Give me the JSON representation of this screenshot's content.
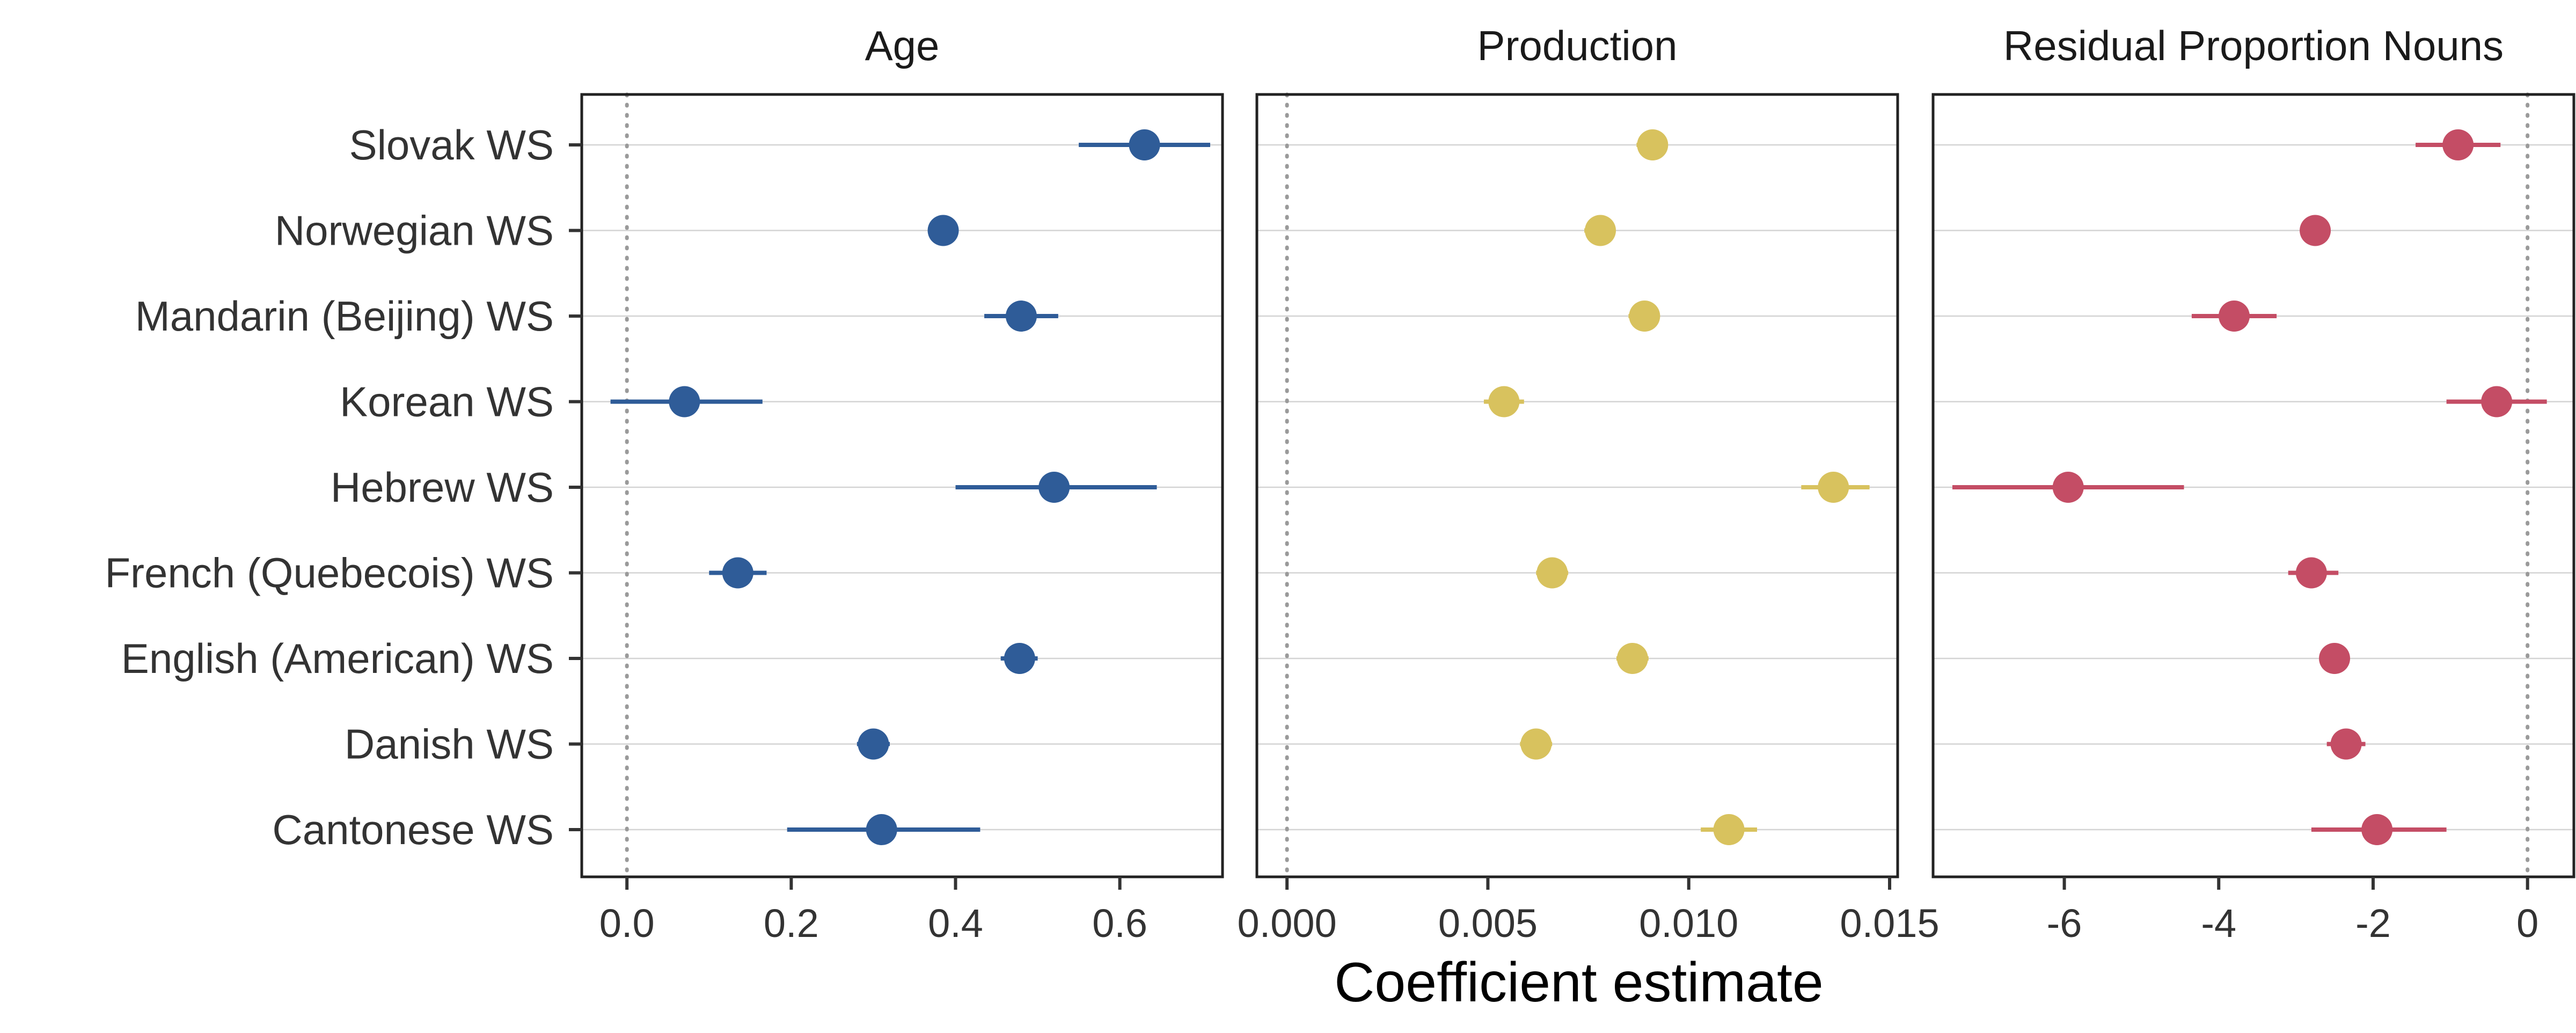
{
  "chart_data": {
    "type": "scatter",
    "subtype": "dot-and-whisker (faceted)",
    "xlabel": "Coefficient estimate",
    "ylabel": "",
    "categories": [
      "Slovak WS",
      "Norwegian WS",
      "Mandarin (Beijing) WS",
      "Korean WS",
      "Hebrew WS",
      "French (Quebecois) WS",
      "English (American) WS",
      "Danish WS",
      "Cantonese WS"
    ],
    "reference_line": 0,
    "grid": "horizontal only",
    "legend": "none",
    "panels": [
      {
        "title": "Age",
        "color": "#2F5C98",
        "xlim": [
          -0.055,
          0.725
        ],
        "ticks": [
          0.0,
          0.2,
          0.4,
          0.6
        ],
        "tick_labels": [
          "0.0",
          "0.2",
          "0.4",
          "0.6"
        ],
        "estimates": [
          0.63,
          0.385,
          0.48,
          0.07,
          0.52,
          0.135,
          0.478,
          0.3,
          0.31
        ],
        "lower": [
          0.55,
          0.375,
          0.435,
          -0.02,
          0.4,
          0.1,
          0.455,
          0.28,
          0.195
        ],
        "upper": [
          0.71,
          0.395,
          0.525,
          0.165,
          0.645,
          0.17,
          0.5,
          0.32,
          0.43
        ]
      },
      {
        "title": "Production",
        "color": "#D8C25E",
        "xlim": [
          -0.00075,
          0.0152
        ],
        "ticks": [
          0.0,
          0.005,
          0.01,
          0.015
        ],
        "tick_labels": [
          "0.000",
          "0.005",
          "0.010",
          "0.015"
        ],
        "estimates": [
          0.0091,
          0.0078,
          0.0089,
          0.0054,
          0.0136,
          0.0066,
          0.0086,
          0.0062,
          0.011
        ],
        "lower": [
          0.0087,
          0.0074,
          0.0085,
          0.0049,
          0.0128,
          0.0062,
          0.0082,
          0.0058,
          0.0103
        ],
        "upper": [
          0.0094,
          0.0081,
          0.0092,
          0.0059,
          0.0145,
          0.007,
          0.009,
          0.0066,
          0.0117
        ]
      },
      {
        "title": "Residual Proportion Nouns",
        "color": "#C44D65",
        "xlim": [
          -7.7,
          0.6
        ],
        "ticks": [
          -6,
          -4,
          -2,
          0
        ],
        "tick_labels": [
          "-6",
          "-4",
          "-2",
          "0"
        ],
        "estimates": [
          -0.9,
          -2.75,
          -3.8,
          -0.4,
          -5.95,
          -2.8,
          -2.5,
          -2.35,
          -1.95
        ],
        "lower": [
          -1.45,
          -2.85,
          -4.35,
          -1.05,
          -7.45,
          -3.1,
          -2.6,
          -2.6,
          -2.8
        ],
        "upper": [
          -0.35,
          -2.65,
          -3.25,
          0.25,
          -4.45,
          -2.45,
          -2.4,
          -2.1,
          -1.05
        ]
      }
    ]
  }
}
